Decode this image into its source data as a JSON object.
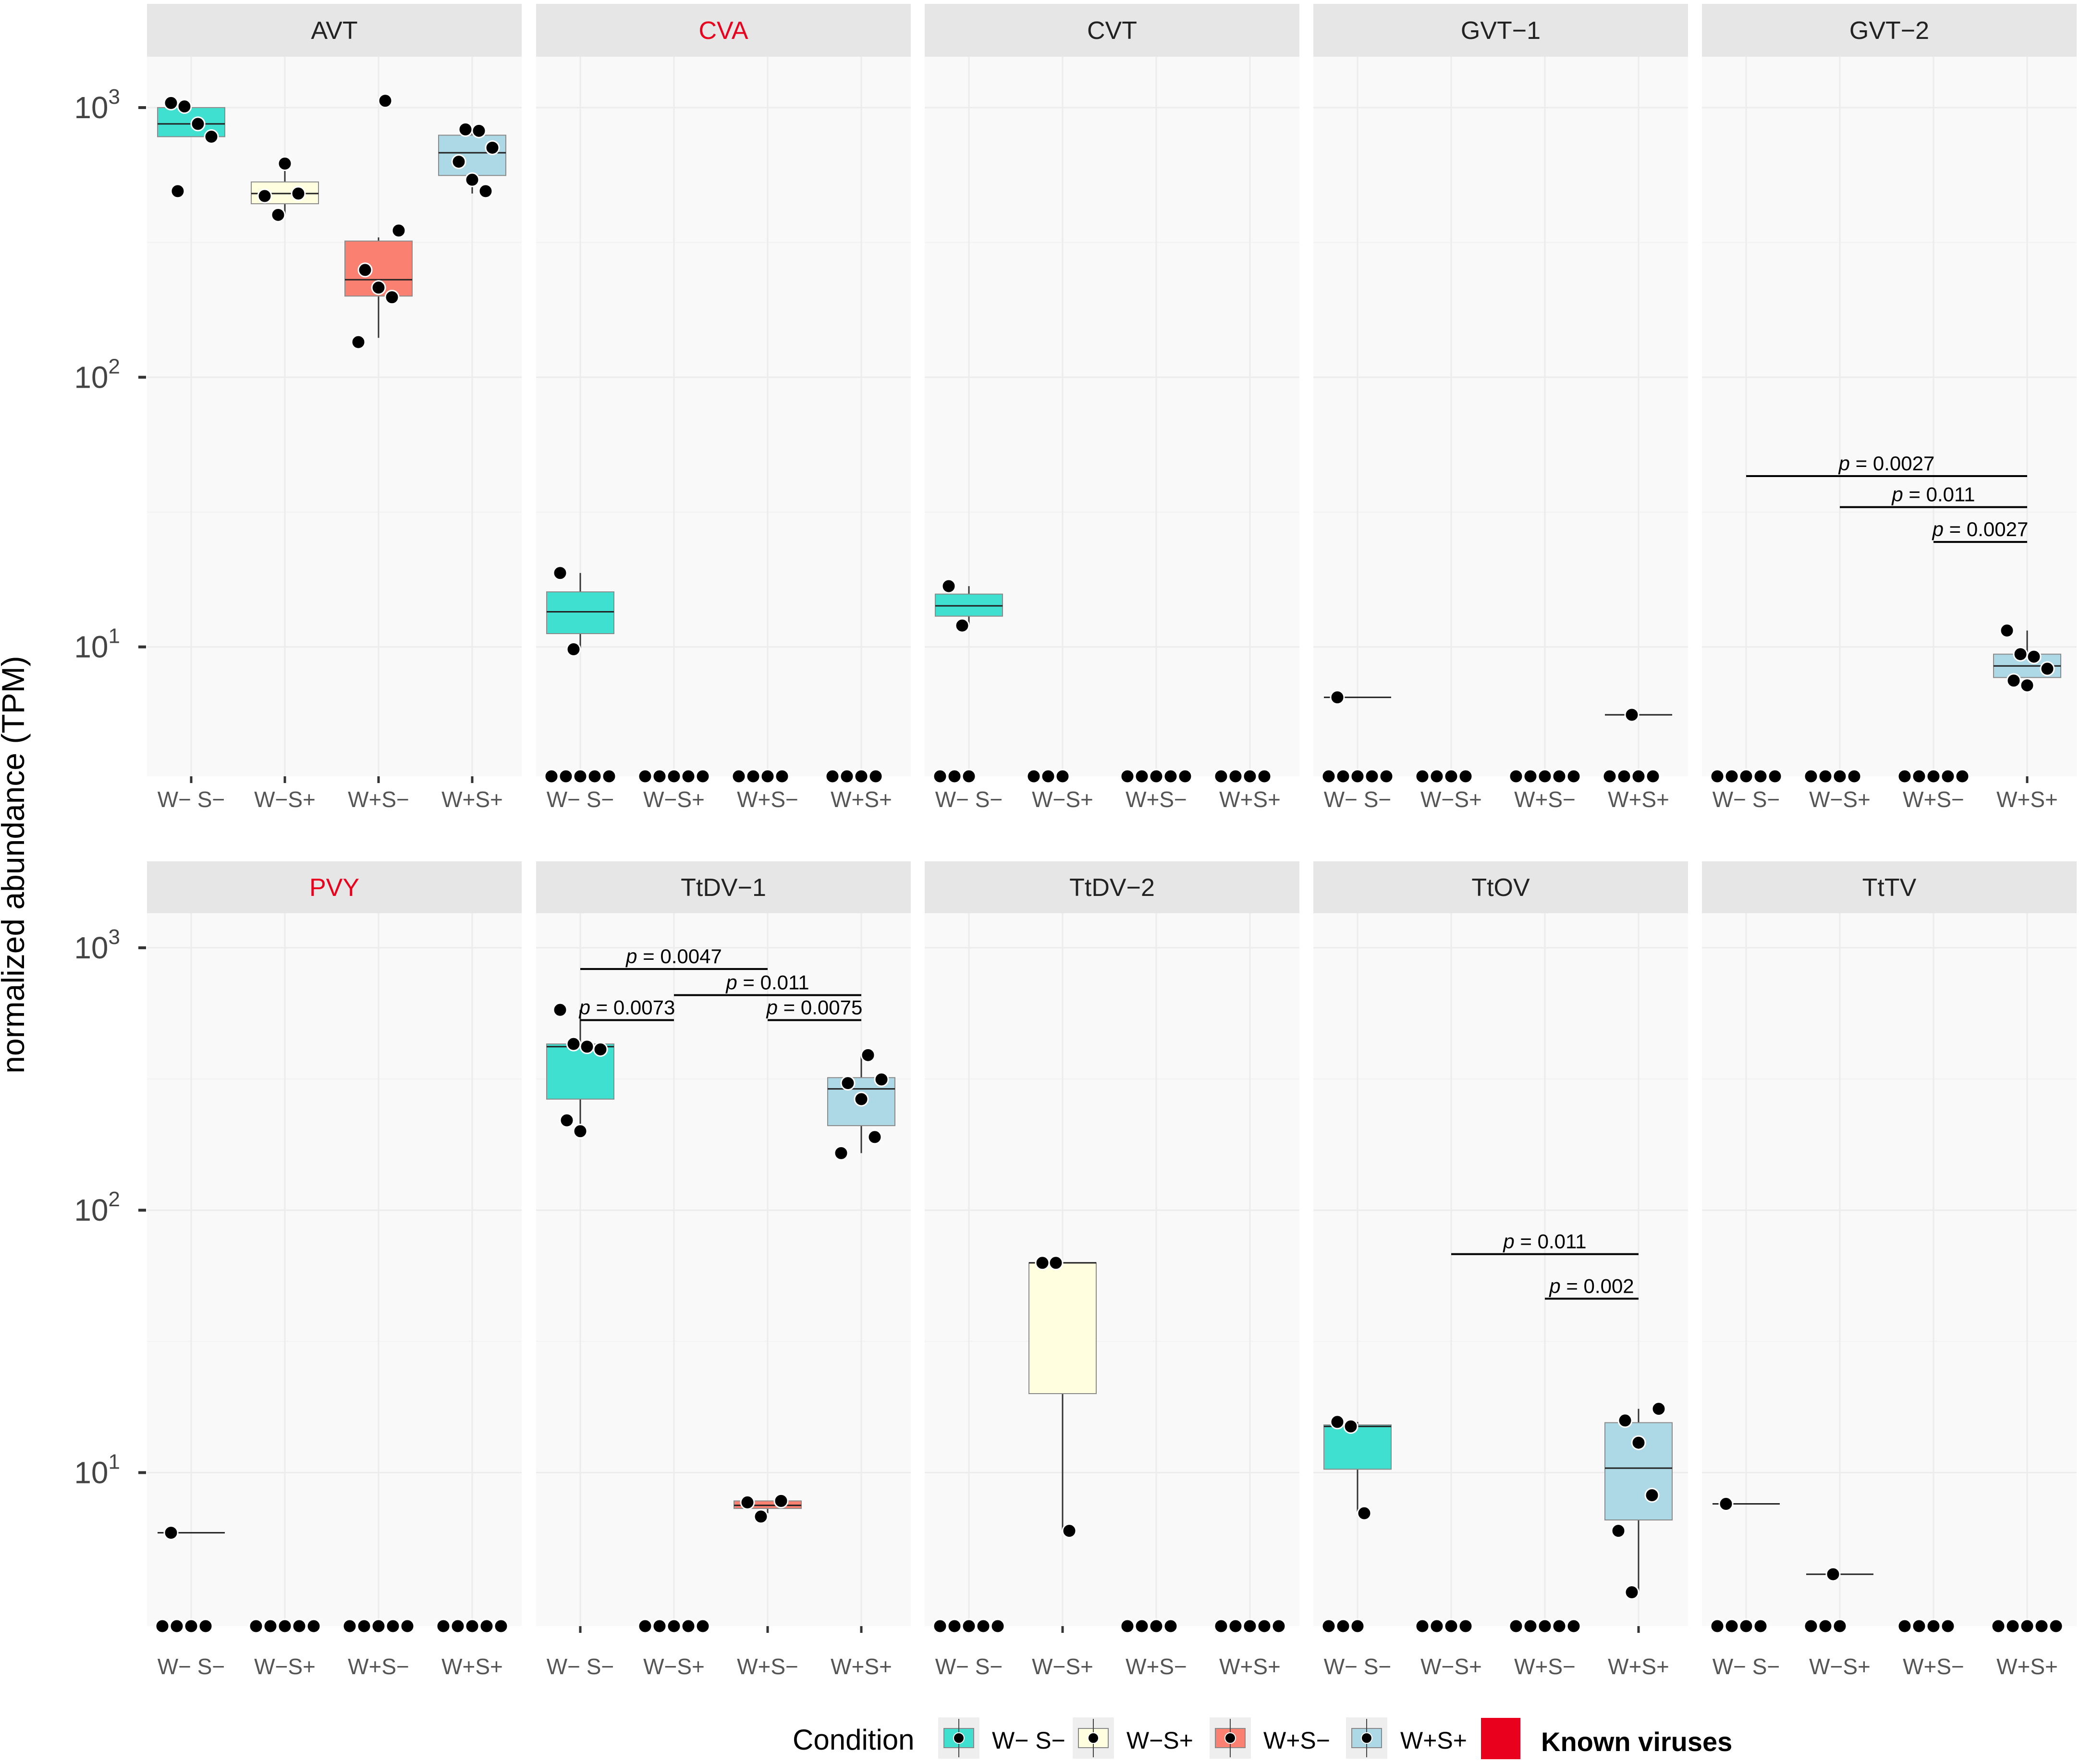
{
  "chart_data": {
    "type": "boxplot-faceted",
    "ylabel": "normalized abundance (TPM)",
    "yscale": "log10",
    "categories": [
      "W− S−",
      "W−S+",
      "W+S−",
      "W+S+"
    ],
    "y_ticks": [
      {
        "value": 10,
        "base": "10",
        "exp": "1"
      },
      {
        "value": 100,
        "base": "10",
        "exp": "2"
      },
      {
        "value": 1000,
        "base": "10",
        "exp": "3"
      }
    ],
    "p_prefix": "p",
    "colors": {
      "W-S-": "#40E0D0",
      "W-S+": "#FFFFE0",
      "W+S-": "#FA8072",
      "W+S+": "#ADD8E6",
      "known": "#E8001C",
      "strip": "#E6E6E6",
      "panel": "#F9F9F9"
    },
    "rows": [
      {
        "ylim": [
          4.0,
          1300
        ],
        "facets": [
          {
            "name": "AVT",
            "known": false,
            "boxes": [
              {
                "cat": 0,
                "q1": 780,
                "med": 870,
                "q3": 1000,
                "lo": 780,
                "hi": 1020
              },
              {
                "cat": 1,
                "q1": 440,
                "med": 480,
                "q3": 530,
                "lo": 400,
                "hi": 620
              },
              {
                "cat": 2,
                "q1": 200,
                "med": 230,
                "q3": 320,
                "lo": 140,
                "hi": 330
              },
              {
                "cat": 3,
                "q1": 560,
                "med": 680,
                "q3": 790,
                "lo": 480,
                "hi": 820
              }
            ],
            "points": [
              [
                0,
                1040
              ],
              [
                0,
                1010
              ],
              [
                0,
                870
              ],
              [
                0,
                780
              ],
              [
                0,
                490
              ],
              [
                1,
                620
              ],
              [
                1,
                480
              ],
              [
                1,
                470
              ],
              [
                1,
                400
              ],
              [
                2,
                1060
              ],
              [
                2,
                350
              ],
              [
                2,
                250
              ],
              [
                2,
                215
              ],
              [
                2,
                198
              ],
              [
                2,
                135
              ],
              [
                3,
                830
              ],
              [
                3,
                820
              ],
              [
                3,
                710
              ],
              [
                3,
                630
              ],
              [
                3,
                540
              ],
              [
                3,
                490
              ]
            ],
            "zeros": [],
            "pvals": []
          },
          {
            "name": "CVA",
            "known": true,
            "boxes": [
              {
                "cat": 0,
                "q1": 11.2,
                "med": 13.5,
                "q3": 16.0,
                "lo": 9.8,
                "hi": 18.8
              }
            ],
            "points": [
              [
                0,
                18.8
              ],
              [
                0,
                9.8
              ]
            ],
            "zeros": [
              [
                0,
                5
              ],
              [
                1,
                5
              ],
              [
                2,
                4
              ],
              [
                3,
                4
              ]
            ],
            "pvals": []
          },
          {
            "name": "CVT",
            "known": false,
            "boxes": [
              {
                "cat": 0,
                "q1": 13.0,
                "med": 14.2,
                "q3": 15.7,
                "lo": 12.0,
                "hi": 16.8
              }
            ],
            "points": [
              [
                0,
                16.8
              ],
              [
                0,
                12.0
              ]
            ],
            "zeros": [
              [
                0,
                3
              ],
              [
                1,
                3
              ],
              [
                2,
                5
              ],
              [
                3,
                4
              ]
            ],
            "pvals": []
          },
          {
            "name": "GVT−1",
            "known": false,
            "boxes": [
              {
                "cat": 0,
                "q1": 6.5,
                "med": 6.5,
                "q3": 6.5,
                "lo": 6.5,
                "hi": 6.5
              },
              {
                "cat": 3,
                "q1": 5.6,
                "med": 5.6,
                "q3": 5.6,
                "lo": 5.6,
                "hi": 5.6
              }
            ],
            "points": [
              [
                0,
                6.5
              ],
              [
                3,
                5.6
              ]
            ],
            "zeros": [
              [
                0,
                5
              ],
              [
                1,
                4
              ],
              [
                2,
                5
              ],
              [
                3,
                4
              ]
            ],
            "pvals": []
          },
          {
            "name": "GVT−2",
            "known": false,
            "boxes": [
              {
                "cat": 3,
                "q1": 7.7,
                "med": 8.5,
                "q3": 9.4,
                "lo": 7.2,
                "hi": 11.5
              }
            ],
            "points": [
              [
                3,
                11.5
              ],
              [
                3,
                9.4
              ],
              [
                3,
                9.2
              ],
              [
                3,
                8.3
              ],
              [
                3,
                7.5
              ],
              [
                3,
                7.2
              ]
            ],
            "zeros": [
              [
                0,
                5
              ],
              [
                1,
                4
              ],
              [
                2,
                5
              ]
            ],
            "pvals": [
              {
                "from": 0,
                "to": 3,
                "p": "= 0.0027",
                "y": 43
              },
              {
                "from": 1,
                "to": 3,
                "p": "= 0.011",
                "y": 33
              },
              {
                "from": 2,
                "to": 3,
                "p": "= 0.0027",
                "y": 24.5
              }
            ]
          }
        ]
      },
      {
        "ylim": [
          2.6,
          1250
        ],
        "facets": [
          {
            "name": "PVY",
            "known": true,
            "boxes": [
              {
                "cat": 0,
                "q1": 5.9,
                "med": 5.9,
                "q3": 5.9,
                "lo": 5.9,
                "hi": 5.9
              }
            ],
            "points": [
              [
                0,
                5.9
              ]
            ],
            "zeros": [
              [
                0,
                4
              ],
              [
                1,
                5
              ],
              [
                2,
                5
              ],
              [
                3,
                5
              ]
            ],
            "pvals": []
          },
          {
            "name": "TtDV−1",
            "known": false,
            "boxes": [
              {
                "cat": 0,
                "q1": 265,
                "med": 420,
                "q3": 430,
                "lo": 200,
                "hi": 580
              },
              {
                "cat": 2,
                "q1": 7.3,
                "med": 7.5,
                "q3": 7.8,
                "lo": 7.0,
                "hi": 7.8
              },
              {
                "cat": 3,
                "q1": 210,
                "med": 290,
                "q3": 320,
                "lo": 165,
                "hi": 390
              }
            ],
            "points": [
              [
                0,
                580
              ],
              [
                0,
                430
              ],
              [
                0,
                420
              ],
              [
                0,
                410
              ],
              [
                0,
                220
              ],
              [
                0,
                200
              ],
              [
                2,
                7.8
              ],
              [
                2,
                7.7
              ],
              [
                2,
                6.8
              ],
              [
                3,
                390
              ],
              [
                3,
                315
              ],
              [
                3,
                305
              ],
              [
                3,
                265
              ],
              [
                3,
                190
              ],
              [
                3,
                165
              ]
            ],
            "zeros": [
              [
                1,
                5
              ]
            ],
            "pvals": [
              {
                "from": 0,
                "to": 2,
                "p": "= 0.0047",
                "y": 830
              },
              {
                "from": 1,
                "to": 3,
                "p": "= 0.011",
                "y": 660
              },
              {
                "from": 0,
                "to": 1,
                "p": "= 0.0073",
                "y": 530
              },
              {
                "from": 2,
                "to": 3,
                "p": "= 0.0075",
                "y": 530
              }
            ]
          },
          {
            "name": "TtDV−2",
            "known": false,
            "boxes": [
              {
                "cat": 1,
                "q1": 20,
                "med": 63,
                "q3": 63,
                "lo": 6.0,
                "hi": 63
              }
            ],
            "points": [
              [
                1,
                63
              ],
              [
                1,
                63
              ],
              [
                1,
                6.0
              ]
            ],
            "zeros": [
              [
                0,
                5
              ],
              [
                2,
                4
              ],
              [
                3,
                5
              ]
            ],
            "pvals": []
          },
          {
            "name": "TtOV",
            "known": false,
            "boxes": [
              {
                "cat": 0,
                "q1": 10.3,
                "med": 15.0,
                "q3": 15.2,
                "lo": 7.1,
                "hi": 15.6
              },
              {
                "cat": 3,
                "q1": 6.6,
                "med": 10.4,
                "q3": 15.5,
                "lo": 3.5,
                "hi": 17.5
              }
            ],
            "points": [
              [
                0,
                15.6
              ],
              [
                0,
                15.0
              ],
              [
                0,
                7.0
              ],
              [
                3,
                17.5
              ],
              [
                3,
                15.8
              ],
              [
                3,
                13.0
              ],
              [
                3,
                8.2
              ],
              [
                3,
                6.0
              ],
              [
                3,
                3.5
              ]
            ],
            "zeros": [
              [
                0,
                3
              ],
              [
                1,
                4
              ],
              [
                2,
                5
              ]
            ],
            "pvals": [
              {
                "from": 1,
                "to": 3,
                "p": "= 0.011",
                "y": 68
              },
              {
                "from": 2,
                "to": 3,
                "p": "= 0.002",
                "y": 46
              }
            ]
          },
          {
            "name": "TtTV",
            "known": false,
            "boxes": [
              {
                "cat": 0,
                "q1": 7.6,
                "med": 7.6,
                "q3": 7.6,
                "lo": 7.6,
                "hi": 7.6
              },
              {
                "cat": 1,
                "q1": 4.1,
                "med": 4.1,
                "q3": 4.1,
                "lo": 4.1,
                "hi": 4.1
              }
            ],
            "points": [
              [
                0,
                7.6
              ],
              [
                1,
                4.1
              ]
            ],
            "zeros": [
              [
                0,
                4
              ],
              [
                1,
                3
              ],
              [
                2,
                4
              ],
              [
                3,
                5
              ]
            ],
            "pvals": []
          }
        ]
      }
    ],
    "legend": {
      "title": "Condition",
      "items": [
        "W− S−",
        "W−S+",
        "W+S−",
        "W+S+"
      ],
      "known_label": "Known viruses"
    }
  }
}
